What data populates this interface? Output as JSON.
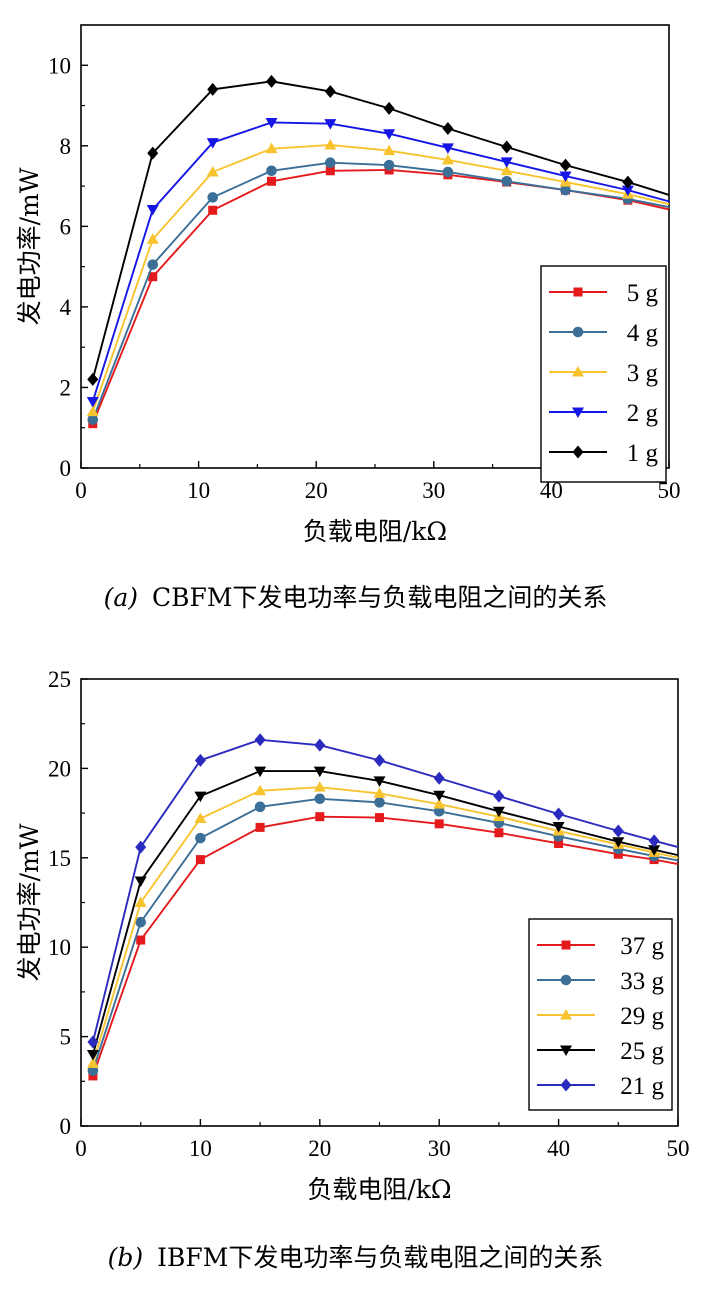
{
  "chart_data": [
    {
      "type": "line",
      "xlabel": "负载电阻/kΩ",
      "ylabel": "发电功率/mW",
      "xlim": [
        0,
        50
      ],
      "ylim": [
        0,
        11
      ],
      "xticks": [
        0,
        10,
        20,
        30,
        40,
        50
      ],
      "yticks": [
        0,
        2,
        4,
        6,
        8,
        10
      ],
      "legend_position": "bottom-right",
      "caption_tag": "(a)",
      "caption": "CBFM下发电功率与负载电阻之间的关系",
      "x": [
        1,
        6.1,
        11.2,
        16.2,
        21.2,
        26.2,
        31.2,
        36.2,
        41.2,
        46.5,
        50
      ],
      "series": [
        {
          "name": "5 g",
          "color": "#e41a1c",
          "marker": "square",
          "values": [
            1.1,
            4.75,
            6.4,
            7.12,
            7.38,
            7.4,
            7.28,
            7.1,
            6.9,
            6.65,
            6.42
          ]
        },
        {
          "name": "4 g",
          "color": "#3b6f98",
          "marker": "circle",
          "values": [
            1.2,
            5.05,
            6.72,
            7.38,
            7.58,
            7.52,
            7.35,
            7.12,
            6.9,
            6.68,
            6.48
          ]
        },
        {
          "name": "3 g",
          "color": "#f7c430",
          "marker": "triangle-up",
          "values": [
            1.4,
            5.68,
            7.35,
            7.93,
            8.02,
            7.88,
            7.65,
            7.38,
            7.1,
            6.8,
            6.55
          ]
        },
        {
          "name": "2 g",
          "color": "#1515e6",
          "marker": "triangle-down",
          "values": [
            1.65,
            6.42,
            8.08,
            8.58,
            8.55,
            8.3,
            7.95,
            7.6,
            7.25,
            6.9,
            6.62
          ]
        },
        {
          "name": "1 g",
          "color": "#000000",
          "marker": "diamond",
          "values": [
            2.2,
            7.82,
            9.4,
            9.6,
            9.35,
            8.93,
            8.43,
            7.97,
            7.52,
            7.1,
            6.78
          ]
        }
      ]
    },
    {
      "type": "line",
      "xlabel": "负载电阻/kΩ",
      "ylabel": "发电功率/mW",
      "xlim": [
        0,
        50
      ],
      "ylim": [
        0,
        25
      ],
      "xticks": [
        0,
        10,
        20,
        30,
        40,
        50
      ],
      "yticks": [
        0,
        5,
        10,
        15,
        20,
        25
      ],
      "legend_position": "bottom-right",
      "caption_tag": "(b)",
      "caption": "IBFM下发电功率与负载电阻之间的关系",
      "x": [
        1,
        5,
        10,
        15,
        20,
        25,
        30,
        35,
        40,
        45,
        48,
        50
      ],
      "series": [
        {
          "name": "37 g",
          "color": "#e41a1c",
          "marker": "square",
          "values": [
            2.8,
            10.4,
            14.9,
            16.7,
            17.3,
            17.25,
            16.9,
            16.4,
            15.8,
            15.2,
            14.9,
            14.65
          ]
        },
        {
          "name": "33 g",
          "color": "#3b6f98",
          "marker": "circle",
          "values": [
            3.1,
            11.4,
            16.1,
            17.85,
            18.3,
            18.1,
            17.6,
            16.95,
            16.2,
            15.5,
            15.1,
            14.85
          ]
        },
        {
          "name": "29 g",
          "color": "#f7c430",
          "marker": "triangle-up",
          "values": [
            3.5,
            12.5,
            17.2,
            18.75,
            18.95,
            18.6,
            18.0,
            17.3,
            16.5,
            15.75,
            15.3,
            15.0
          ]
        },
        {
          "name": "25 g",
          "color": "#000000",
          "marker": "triangle-down",
          "values": [
            4.0,
            13.7,
            18.45,
            19.85,
            19.85,
            19.3,
            18.5,
            17.6,
            16.75,
            15.9,
            15.45,
            15.15
          ]
        },
        {
          "name": "21 g",
          "color": "#2a2abf",
          "marker": "diamond",
          "values": [
            4.7,
            15.6,
            20.45,
            21.6,
            21.3,
            20.45,
            19.45,
            18.45,
            17.45,
            16.5,
            15.95,
            15.6
          ]
        }
      ]
    }
  ]
}
